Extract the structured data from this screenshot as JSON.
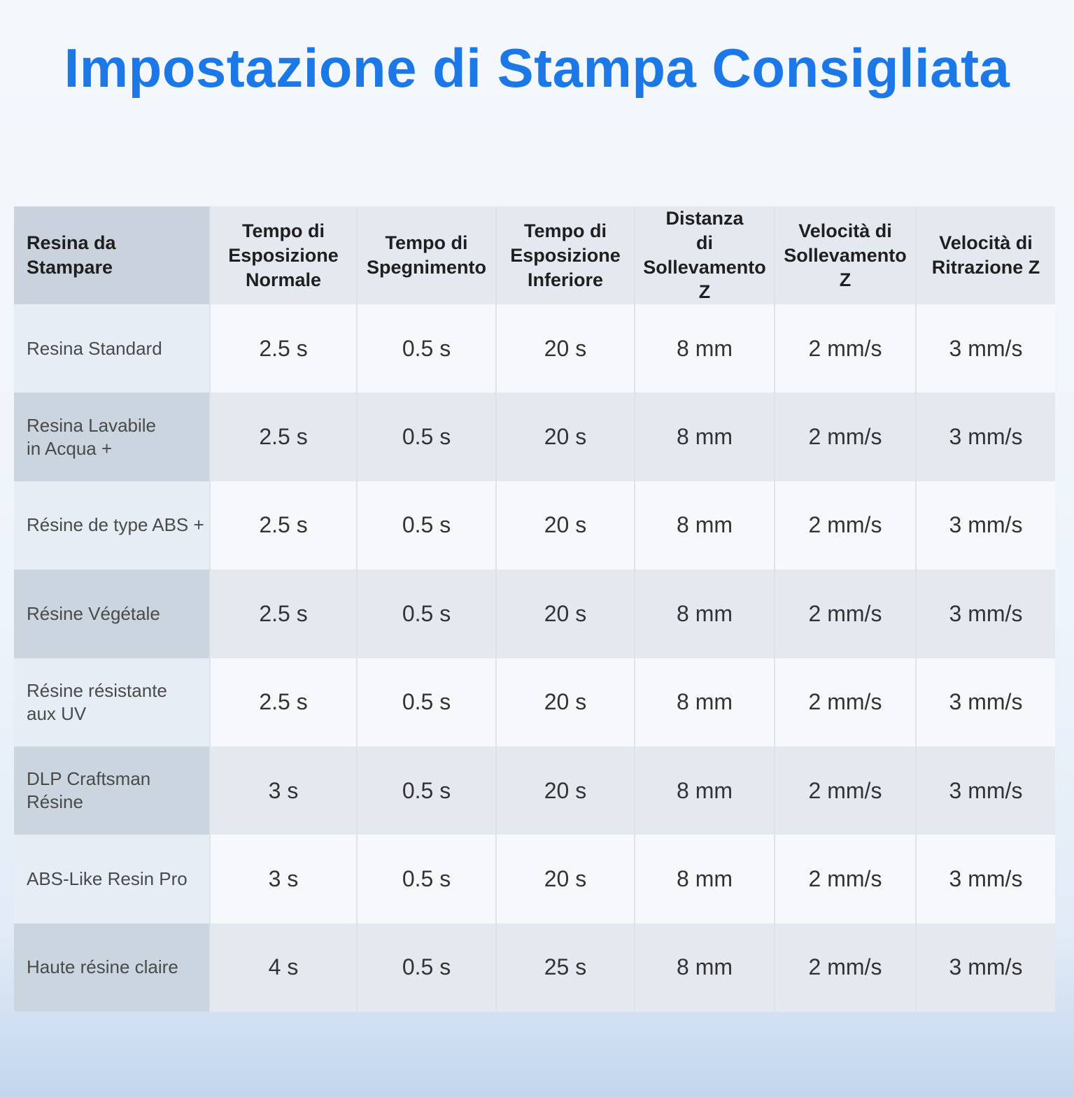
{
  "title": "Impostazione di Stampa Consigliata",
  "table": {
    "header": [
      "Resina da Stampare",
      "Tempo di\nEsposizione\nNormale",
      "Tempo di\nSpegnimento",
      "Tempo di\nEsposizione\nInferiore",
      "Distanza\ndi\nSollevamento Z",
      "Velocità di\nSollevamento Z",
      "Velocità di\nRitrazione Z"
    ],
    "rows": [
      [
        "Resina Standard",
        "2.5 s",
        "0.5 s",
        "20 s",
        "8 mm",
        "2 mm/s",
        "3 mm/s"
      ],
      [
        "Resina Lavabile\nin Acqua +",
        "2.5 s",
        "0.5 s",
        "20 s",
        "8 mm",
        "2 mm/s",
        "3 mm/s"
      ],
      [
        "Résine de type ABS +",
        "2.5 s",
        "0.5 s",
        "20 s",
        "8 mm",
        "2 mm/s",
        "3 mm/s"
      ],
      [
        "Résine Végétale",
        "2.5 s",
        "0.5 s",
        "20 s",
        "8 mm",
        "2 mm/s",
        "3 mm/s"
      ],
      [
        "Résine résistante\naux UV",
        "2.5 s",
        "0.5 s",
        "20 s",
        "8 mm",
        "2 mm/s",
        "3 mm/s"
      ],
      [
        "DLP Craftsman\nRésine",
        "3 s",
        "0.5 s",
        "20 s",
        "8 mm",
        "2 mm/s",
        "3 mm/s"
      ],
      [
        "ABS-Like Resin Pro",
        "3 s",
        "0.5 s",
        "20 s",
        "8 mm",
        "2 mm/s",
        "3 mm/s"
      ],
      [
        "Haute résine claire",
        "4 s",
        "0.5 s",
        "25 s",
        "8 mm",
        "2 mm/s",
        "3 mm/s"
      ]
    ]
  }
}
